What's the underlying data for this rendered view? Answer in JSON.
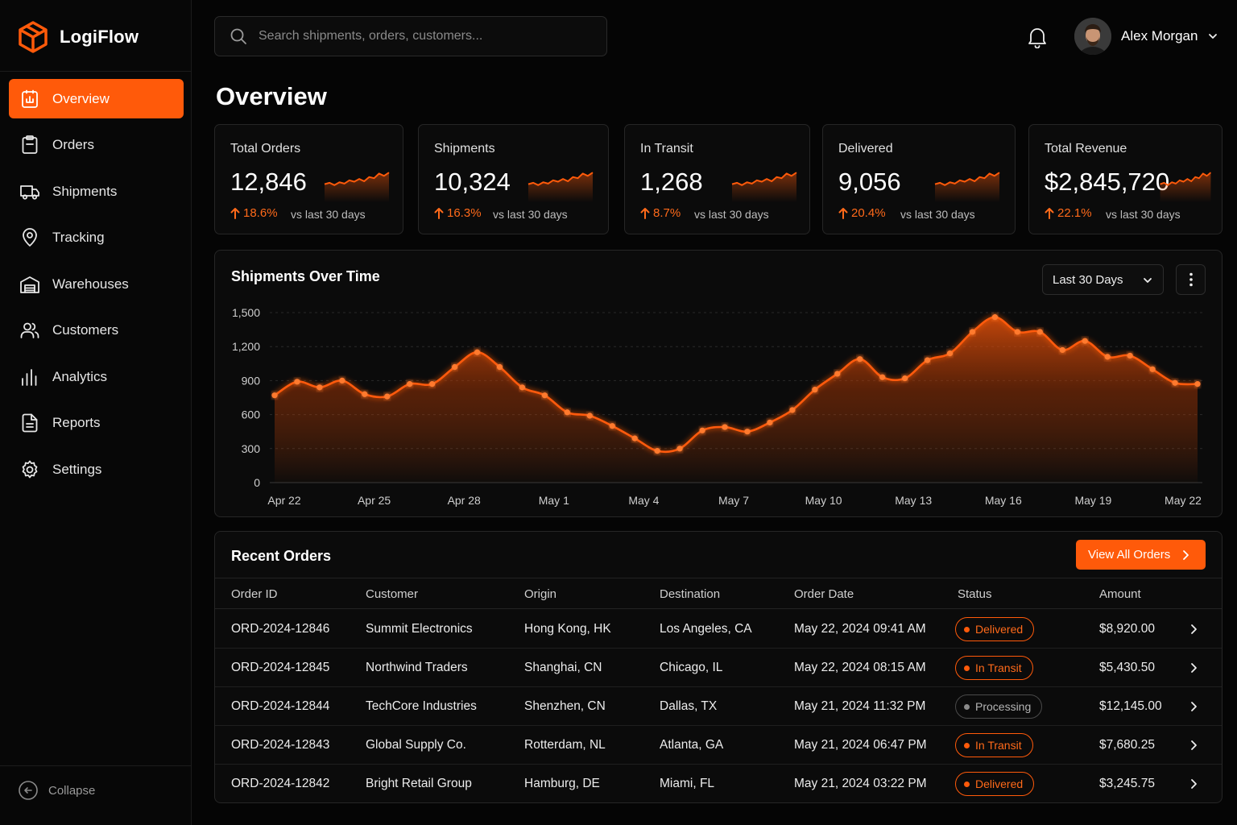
{
  "app": {
    "name": "LogiFlow"
  },
  "sidebar": {
    "items": [
      {
        "label": "Overview",
        "icon": "overview-icon"
      },
      {
        "label": "Orders",
        "icon": "clipboard-icon"
      },
      {
        "label": "Shipments",
        "icon": "truck-icon"
      },
      {
        "label": "Tracking",
        "icon": "map-pin-icon"
      },
      {
        "label": "Warehouses",
        "icon": "warehouse-icon"
      },
      {
        "label": "Customers",
        "icon": "users-icon"
      },
      {
        "label": "Analytics",
        "icon": "bar-chart-icon"
      },
      {
        "label": "Reports",
        "icon": "document-icon"
      },
      {
        "label": "Settings",
        "icon": "gear-icon"
      }
    ],
    "active_index": 0,
    "collapse_label": "Collapse"
  },
  "header": {
    "search_placeholder": "Search shipments, orders, customers...",
    "user_name": "Alex Morgan"
  },
  "page": {
    "title": "Overview"
  },
  "kpis": [
    {
      "label": "Total Orders",
      "value": "12,846",
      "delta": "18.6%",
      "vs": "vs last 30 days"
    },
    {
      "label": "Shipments",
      "value": "10,324",
      "delta": "16.3%",
      "vs": "vs last 30 days"
    },
    {
      "label": "In Transit",
      "value": "1,268",
      "delta": "8.7%",
      "vs": "vs last 30 days"
    },
    {
      "label": "Delivered",
      "value": "9,056",
      "delta": "20.4%",
      "vs": "vs last 30 days"
    },
    {
      "label": "Total Revenue",
      "value": "$2,845,720",
      "delta": "22.1%",
      "vs": "vs last 30 days"
    }
  ],
  "chart_panel": {
    "range_label": "Last 30 Days"
  },
  "chart_data": {
    "type": "area",
    "title": "Shipments Over Time",
    "xlabel": "",
    "ylabel": "",
    "ylim": [
      0,
      1500
    ],
    "yticks": [
      0,
      300,
      600,
      900,
      1200,
      1500
    ],
    "ytick_labels": [
      "0",
      "300",
      "600",
      "900",
      "1,200",
      "1,500"
    ],
    "xtick_labels": [
      "Apr 22",
      "Apr 25",
      "Apr 28",
      "May 1",
      "May 4",
      "May 7",
      "May 10",
      "May 13",
      "May 16",
      "May 19",
      "May 22"
    ],
    "grid": true,
    "accent": "#ff5a0a",
    "series": [
      {
        "values": [
          770,
          890,
          840,
          900,
          780,
          760,
          870,
          870,
          1020,
          1150,
          1020,
          840,
          770,
          620,
          590,
          500,
          390,
          280,
          300,
          460,
          490,
          450,
          530,
          640,
          820,
          960,
          1090,
          930,
          920,
          1080,
          1140,
          1330,
          1460,
          1330,
          1330,
          1170,
          1250,
          1110,
          1120,
          1000,
          880,
          870
        ]
      }
    ]
  },
  "orders": {
    "title": "Recent Orders",
    "view_all_label": "View All Orders",
    "columns": [
      "Order ID",
      "Customer",
      "Origin",
      "Destination",
      "Order Date",
      "Status",
      "Amount"
    ],
    "rows": [
      {
        "id": "ORD-2024-12846",
        "customer": "Summit Electronics",
        "origin": "Hong Kong, HK",
        "destination": "Los Angeles, CA",
        "date": "May 22, 2024 09:41 AM",
        "status": "Delivered",
        "amount": "$8,920.00"
      },
      {
        "id": "ORD-2024-12845",
        "customer": "Northwind Traders",
        "origin": "Shanghai, CN",
        "destination": "Chicago, IL",
        "date": "May 22, 2024 08:15 AM",
        "status": "In Transit",
        "amount": "$5,430.50"
      },
      {
        "id": "ORD-2024-12844",
        "customer": "TechCore Industries",
        "origin": "Shenzhen, CN",
        "destination": "Dallas, TX",
        "date": "May 21, 2024 11:32 PM",
        "status": "Processing",
        "amount": "$12,145.00"
      },
      {
        "id": "ORD-2024-12843",
        "customer": "Global Supply Co.",
        "origin": "Rotterdam, NL",
        "destination": "Atlanta, GA",
        "date": "May 21, 2024 06:47 PM",
        "status": "In Transit",
        "amount": "$7,680.25"
      },
      {
        "id": "ORD-2024-12842",
        "customer": "Bright Retail Group",
        "origin": "Hamburg, DE",
        "destination": "Miami, FL",
        "date": "May 21, 2024 03:22 PM",
        "status": "Delivered",
        "amount": "$3,245.75"
      }
    ]
  }
}
